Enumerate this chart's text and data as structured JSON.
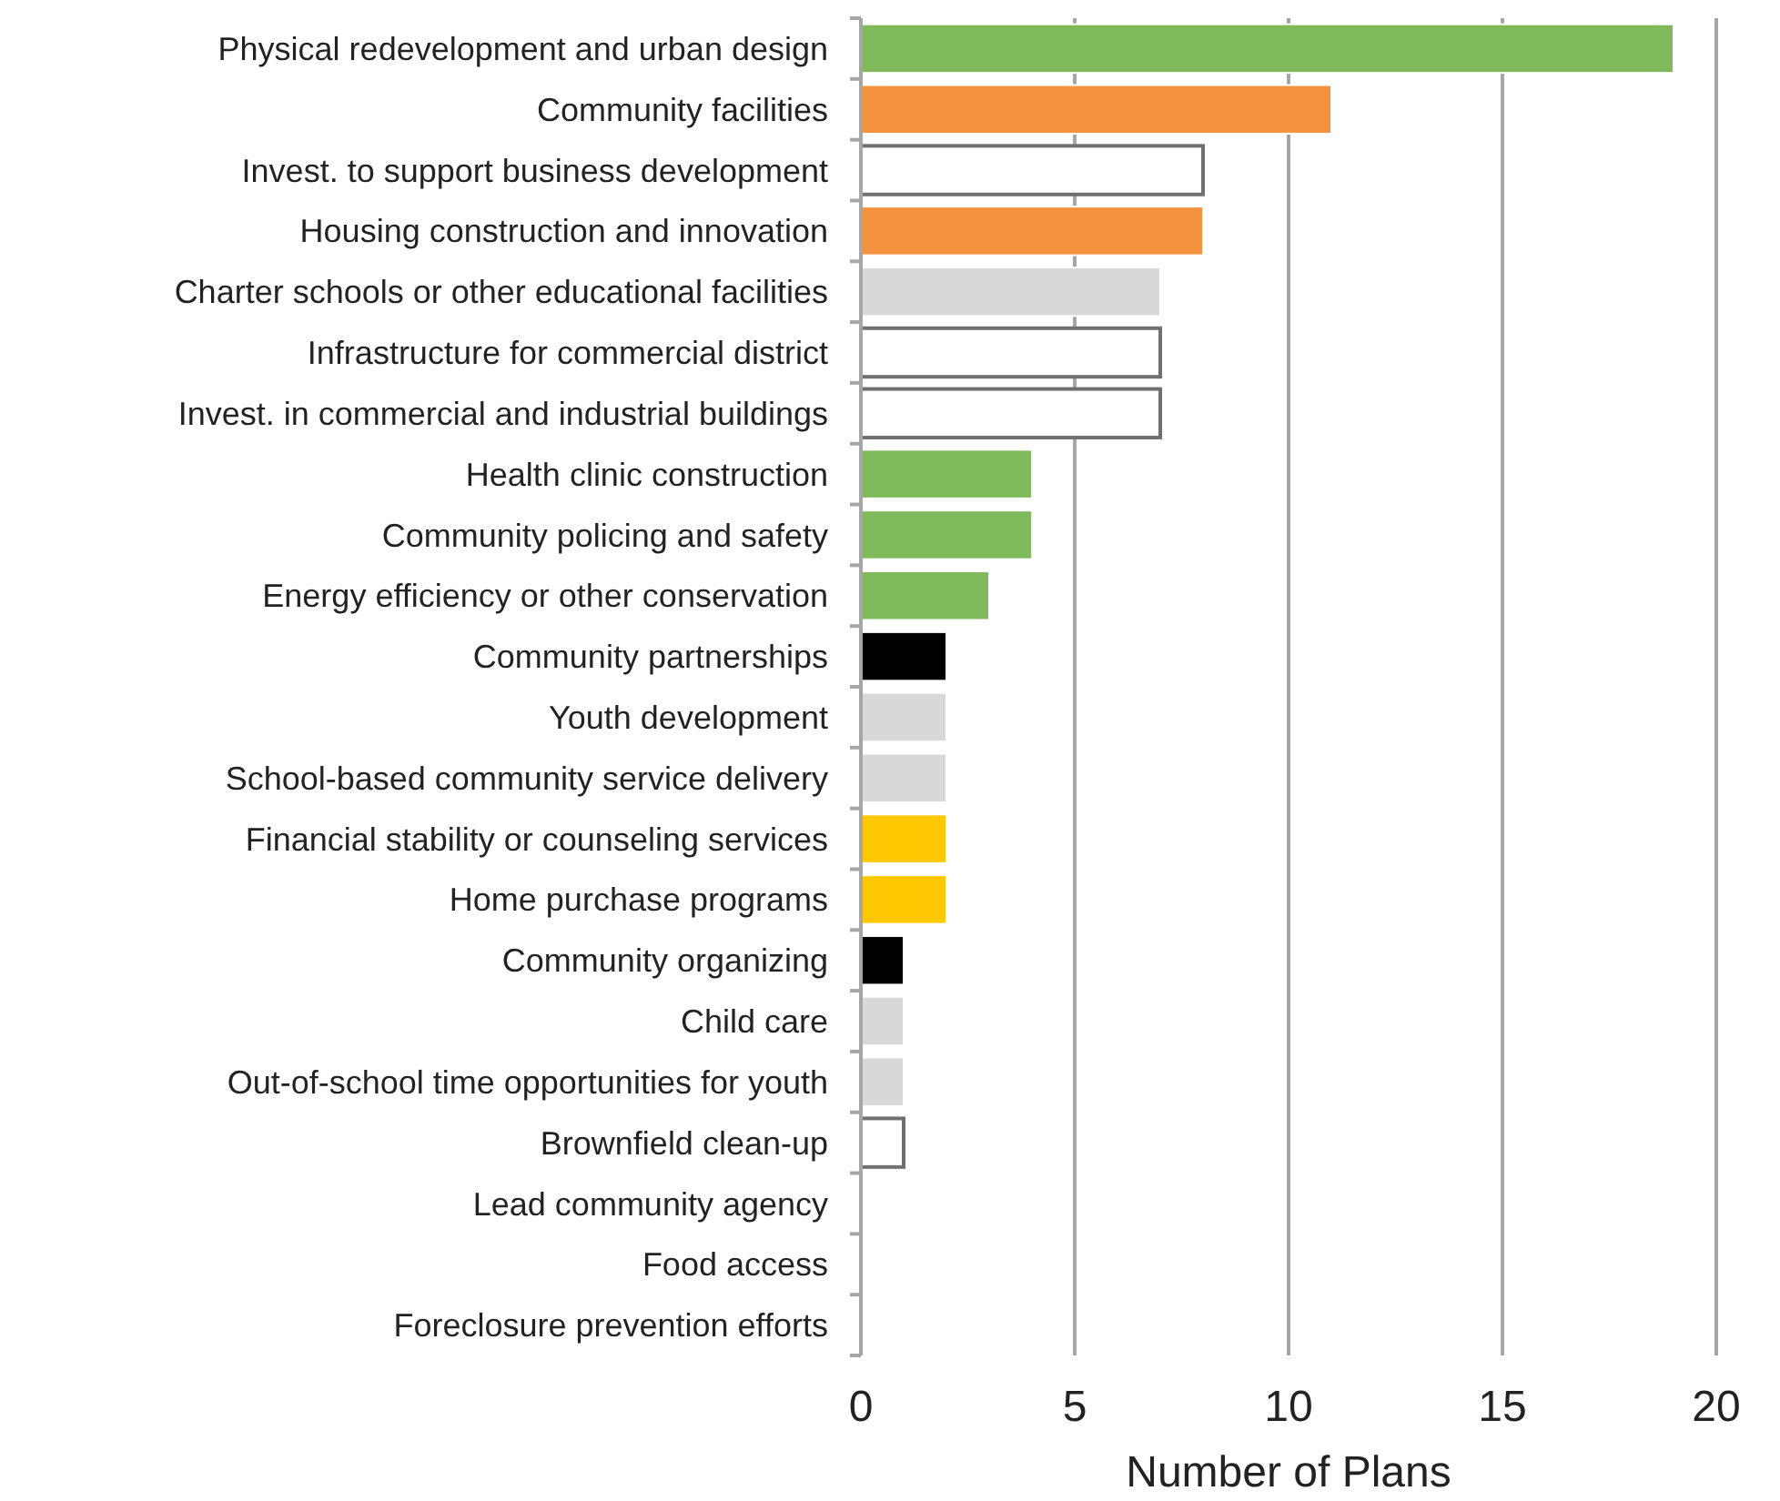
{
  "chart_data": {
    "type": "bar",
    "orientation": "horizontal",
    "xlabel": "Number of Plans",
    "categories": [
      "Physical redevelopment and urban design",
      "Community facilities",
      "Invest. to support business development",
      "Housing construction and innovation",
      "Charter schools or other educational facilities",
      "Infrastructure for commercial district",
      "Invest. in commercial and industrial buildings",
      "Health clinic construction",
      "Community policing and safety",
      "Energy efficiency or other conservation",
      "Community partnerships",
      "Youth development",
      "School-based community service delivery",
      "Financial stability or counseling services",
      "Home purchase programs",
      "Community organizing",
      "Child care",
      "Out-of-school time opportunities for youth",
      "Brownfield clean-up",
      "Lead community agency",
      "Food access",
      "Foreclosure prevention efforts"
    ],
    "values": [
      19,
      11,
      8,
      8,
      7,
      7,
      7,
      4,
      4,
      3,
      2,
      2,
      2,
      2,
      2,
      1,
      1,
      1,
      1,
      0,
      0,
      0
    ],
    "colors": [
      "#7fba5a",
      "#f5923e",
      "#ffffff",
      "#f5923e",
      "#d9d8d8",
      "#ffffff",
      "#ffffff",
      "#7fba5a",
      "#7fba5a",
      "#7fba5a",
      "#000000",
      "#d9d8d8",
      "#d9d8d8",
      "#ffc800",
      "#ffc800",
      "#000000",
      "#d9d8d8",
      "#d9d8d8",
      "#ffffff",
      "#ffffff",
      "#ffffff",
      "#ffffff"
    ],
    "xlim": [
      0,
      20
    ],
    "xticks": [
      0,
      5,
      10,
      15,
      20
    ],
    "grid": "x"
  }
}
